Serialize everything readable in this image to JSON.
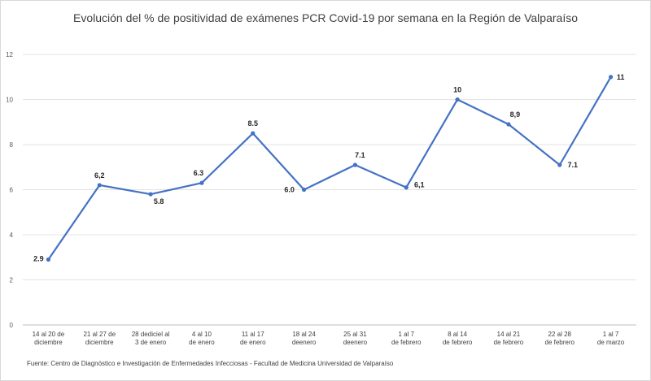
{
  "chart_data": {
    "type": "line",
    "title": "Evolución del % de positividad de exámenes PCR Covid-19 por semana en la Región de Valparaíso",
    "source": "Fuente: Centro de Diagnóstico e Investigación de Enfermedades Infecciosas - Facultad de Medicina Universidad de Valparaíso",
    "categories": [
      [
        "14 al 20 de",
        "diciembre"
      ],
      [
        "21 al 27 de",
        "diciembre"
      ],
      [
        "28 dediciel al",
        "3 de enero"
      ],
      [
        "4 al 10",
        "de enero"
      ],
      [
        "11 al 17",
        "de enero"
      ],
      [
        "18 al 24",
        "deenero"
      ],
      [
        "25 al 31",
        "deenero"
      ],
      [
        "1 al 7",
        "de febrero"
      ],
      [
        "8 al 14",
        "de febrero"
      ],
      [
        "14 al 21",
        "de febrero"
      ],
      [
        "22 al 28",
        "de febrero"
      ],
      [
        "1 al 7",
        "de marzo"
      ]
    ],
    "values": [
      2.9,
      6.2,
      5.8,
      6.3,
      8.5,
      6.0,
      7.1,
      6.1,
      10,
      8.9,
      7.1,
      11
    ],
    "labels": [
      "2.9",
      "6,2",
      "5.8",
      "6.3",
      "8.5",
      "6.0",
      "7.1",
      "6,1",
      "10",
      "8,9",
      "7.1",
      "11"
    ],
    "ylim": [
      0,
      12
    ],
    "yticks": [
      0,
      2,
      4,
      6,
      8,
      10,
      12
    ],
    "grid": true,
    "color": "#4472c4"
  }
}
